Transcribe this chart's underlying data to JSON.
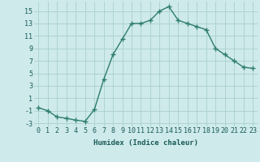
{
  "x": [
    0,
    1,
    2,
    3,
    4,
    5,
    6,
    7,
    8,
    9,
    10,
    11,
    12,
    13,
    14,
    15,
    16,
    17,
    18,
    19,
    20,
    21,
    22,
    23
  ],
  "y": [
    -0.5,
    -1.0,
    -2.0,
    -2.2,
    -2.5,
    -2.7,
    -0.8,
    4.0,
    8.0,
    10.5,
    13.0,
    13.0,
    13.5,
    15.0,
    15.7,
    13.5,
    13.0,
    12.5,
    12.0,
    9.0,
    8.0,
    7.0,
    6.0,
    5.8
  ],
  "line_color": "#2e7d6e",
  "marker": "+",
  "marker_color": "#2e7d6e",
  "bg_color": "#ceeaea",
  "grid_color": "#aacfcf",
  "xlabel": "Humidex (Indice chaleur)",
  "xlim": [
    -0.5,
    23.5
  ],
  "ylim": [
    -3.5,
    16.5
  ],
  "xticks": [
    0,
    1,
    2,
    3,
    4,
    5,
    6,
    7,
    8,
    9,
    10,
    11,
    12,
    13,
    14,
    15,
    16,
    17,
    18,
    19,
    20,
    21,
    22,
    23
  ],
  "yticks": [
    -3,
    -1,
    1,
    3,
    5,
    7,
    9,
    11,
    13,
    15
  ],
  "xlabel_fontsize": 6.5,
  "tick_fontsize": 6,
  "line_width": 1.0,
  "marker_size": 4
}
